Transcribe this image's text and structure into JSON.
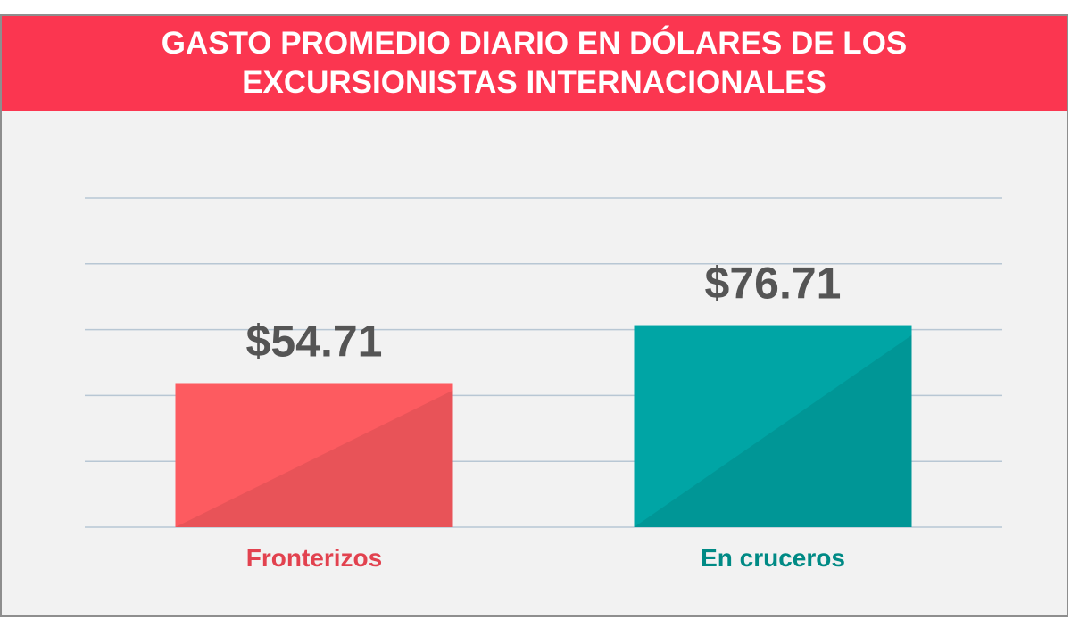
{
  "header": {
    "title": "GASTO PROMEDIO DIARIO EN DÓLARES DE LOS EXCURSIONISTAS INTERNACIONALES"
  },
  "colors": {
    "header_bg": "#fb3650",
    "panel_bg": "#f2f2f2",
    "gridline": "#b8c7d4"
  },
  "chart_data": {
    "type": "bar",
    "title": "GASTO PROMEDIO DIARIO EN DÓLARES DE LOS EXCURSIONISTAS INTERNACIONALES",
    "categories": [
      "Fronterizos",
      "En cruceros"
    ],
    "values": [
      54.71,
      76.71
    ],
    "value_labels": [
      "$54.71",
      "$76.71"
    ],
    "bar_colors": [
      "#fd5b60",
      "#00a5a5"
    ],
    "bar_shade_colors": [
      "#e85358",
      "#009696"
    ],
    "label_colors": [
      "#e2424f",
      "#008a85"
    ],
    "xlabel": "",
    "ylabel": "",
    "ylim": [
      0,
      125
    ],
    "grid": true,
    "gridline_count": 6,
    "legend": "none"
  }
}
